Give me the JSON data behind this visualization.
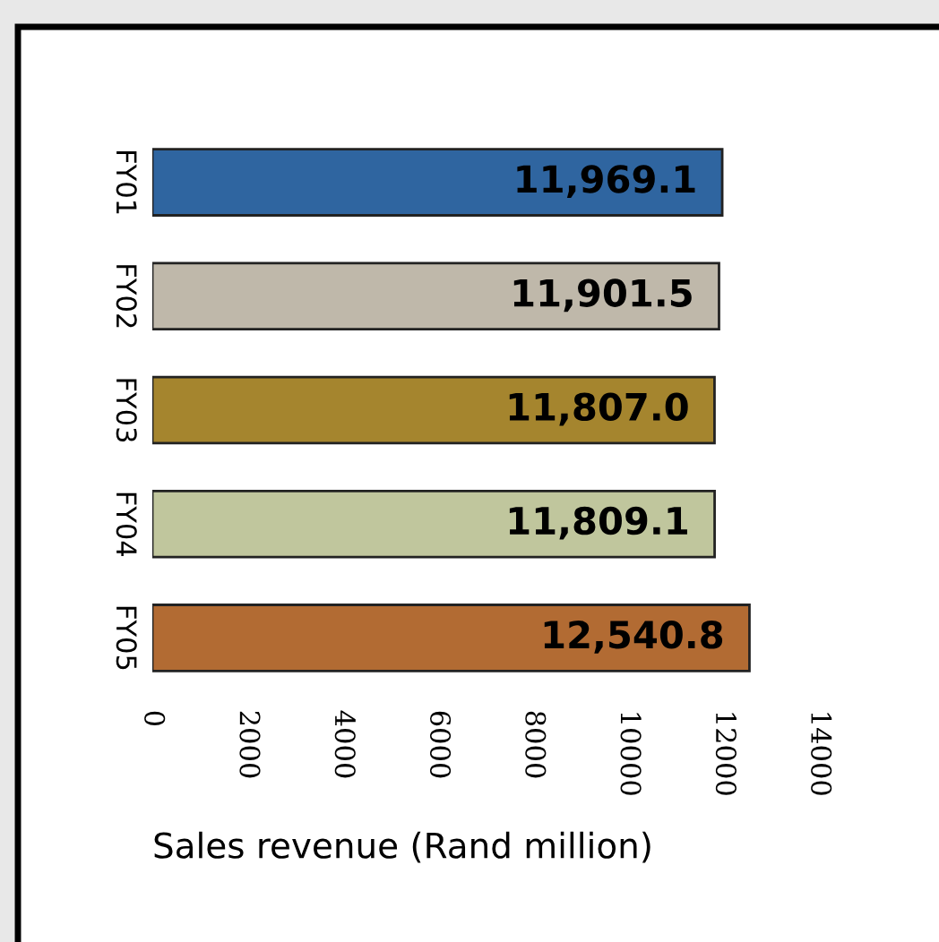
{
  "chart_data": {
    "type": "bar",
    "orientation": "horizontal",
    "xlabel": "Sales revenue (Rand million)",
    "categories": [
      "FY01",
      "FY02",
      "FY03",
      "FY04",
      "FY05"
    ],
    "values": [
      11969.1,
      11901.5,
      11807.0,
      11809.1,
      12540.8
    ],
    "colors": [
      "#2f65a0",
      "#bfb8aa",
      "#a5852e",
      "#c0c69d",
      "#b26b33"
    ],
    "value_labels": [
      "11,969.1",
      "11,901.5",
      "11,807.0",
      "11,809.1",
      "12,540.8"
    ],
    "xlim": [
      0,
      14000
    ],
    "xticks": [
      0,
      2000,
      4000,
      6000,
      8000,
      10000,
      12000,
      14000
    ],
    "grid": false
  }
}
